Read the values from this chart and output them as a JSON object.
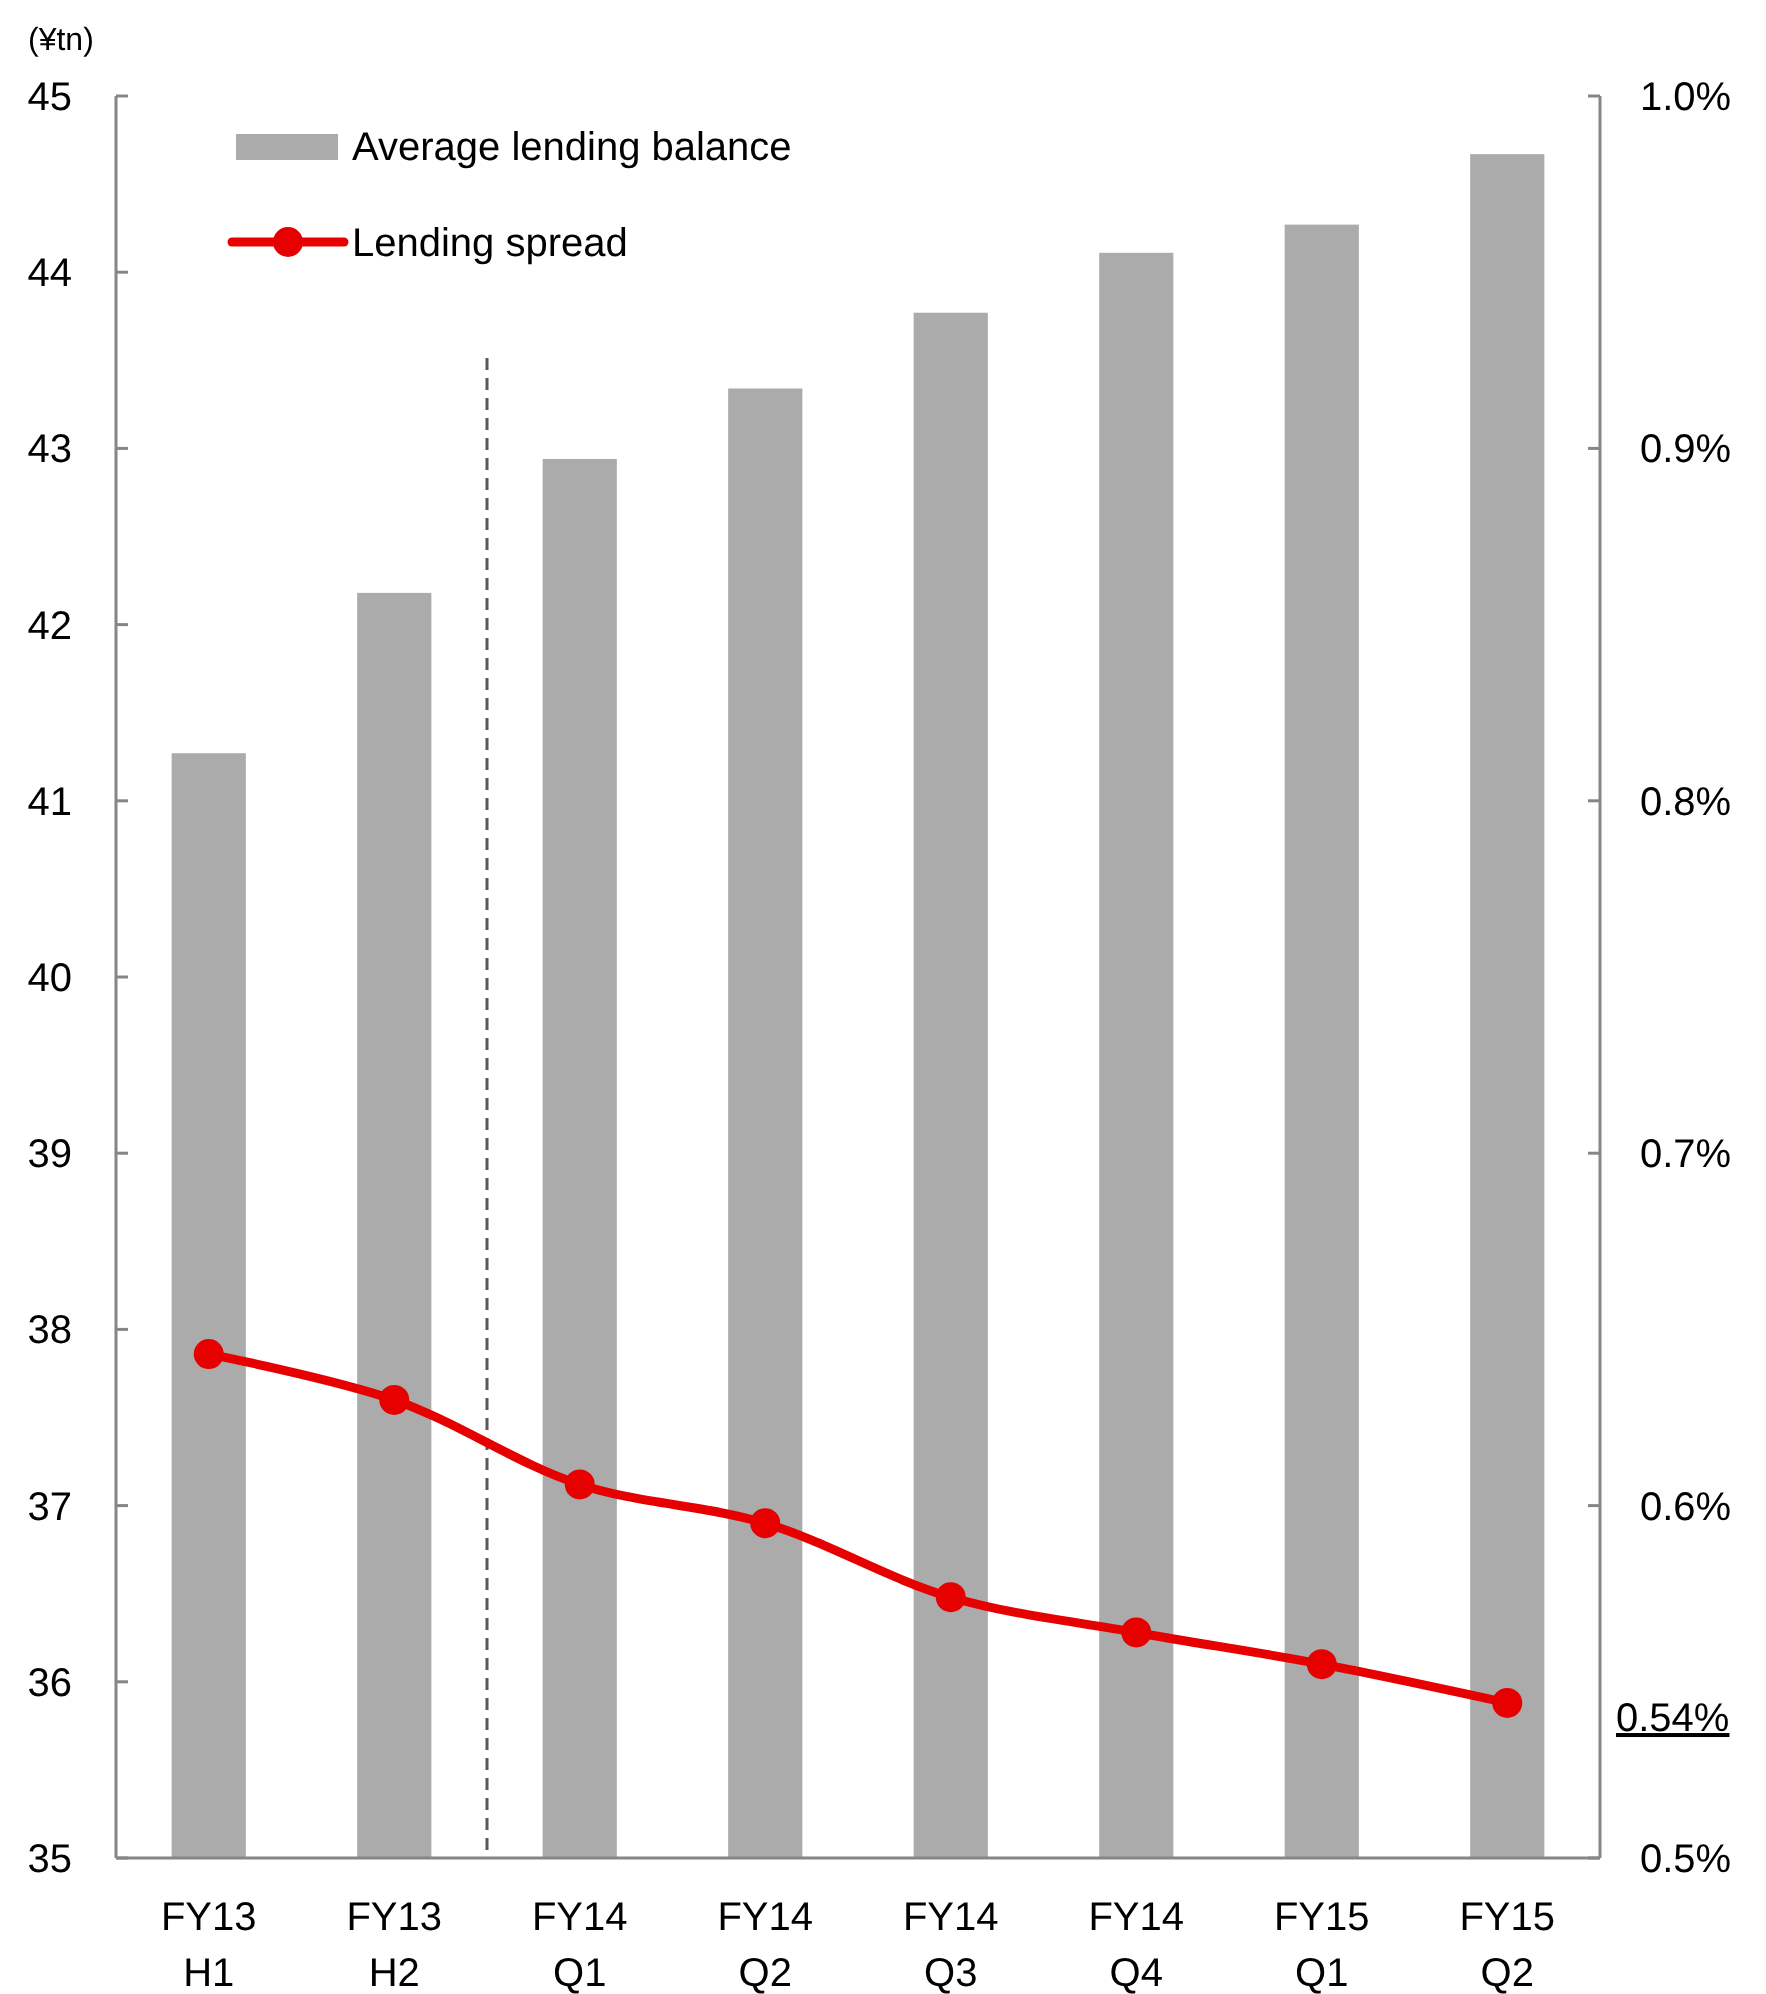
{
  "chart_data": {
    "type": "bar",
    "ylabel": "(¥tn)",
    "categories": [
      "FY13\nH1",
      "FY13\nH2",
      "FY14\nQ1",
      "FY14\nQ2",
      "FY14\nQ3",
      "FY14\nQ4",
      "FY15\nQ1",
      "FY15\nQ2"
    ],
    "series": [
      {
        "name": "Average lending balance",
        "color": "#ababab",
        "values": [
          41.27,
          42.18,
          42.94,
          43.34,
          43.77,
          44.11,
          44.27,
          44.67
        ]
      },
      {
        "name": "Lending spread",
        "type": "line",
        "axis": "y2",
        "color": "#e60000",
        "marker": "circle",
        "line_style": "solid",
        "values": [
          0.643,
          0.63,
          0.606,
          0.595,
          0.574,
          0.564,
          0.555,
          0.544
        ]
      }
    ],
    "ylim": [
      35,
      45
    ],
    "yticks": [
      35,
      36,
      37,
      38,
      39,
      40,
      41,
      42,
      43,
      44,
      45
    ],
    "y2lim": [
      0.5,
      1.0
    ],
    "y2ticks": [
      {
        "value": 0.5,
        "label": "0.5%"
      },
      {
        "value": 0.54,
        "label": "0.54%"
      },
      {
        "value": 0.6,
        "label": "0.6%"
      },
      {
        "value": 0.7,
        "label": "0.7%"
      },
      {
        "value": 0.8,
        "label": "0.8%"
      },
      {
        "value": 0.9,
        "label": "0.9%"
      },
      {
        "value": 1.0,
        "label": "1.0%"
      }
    ],
    "legend": "top left"
  }
}
